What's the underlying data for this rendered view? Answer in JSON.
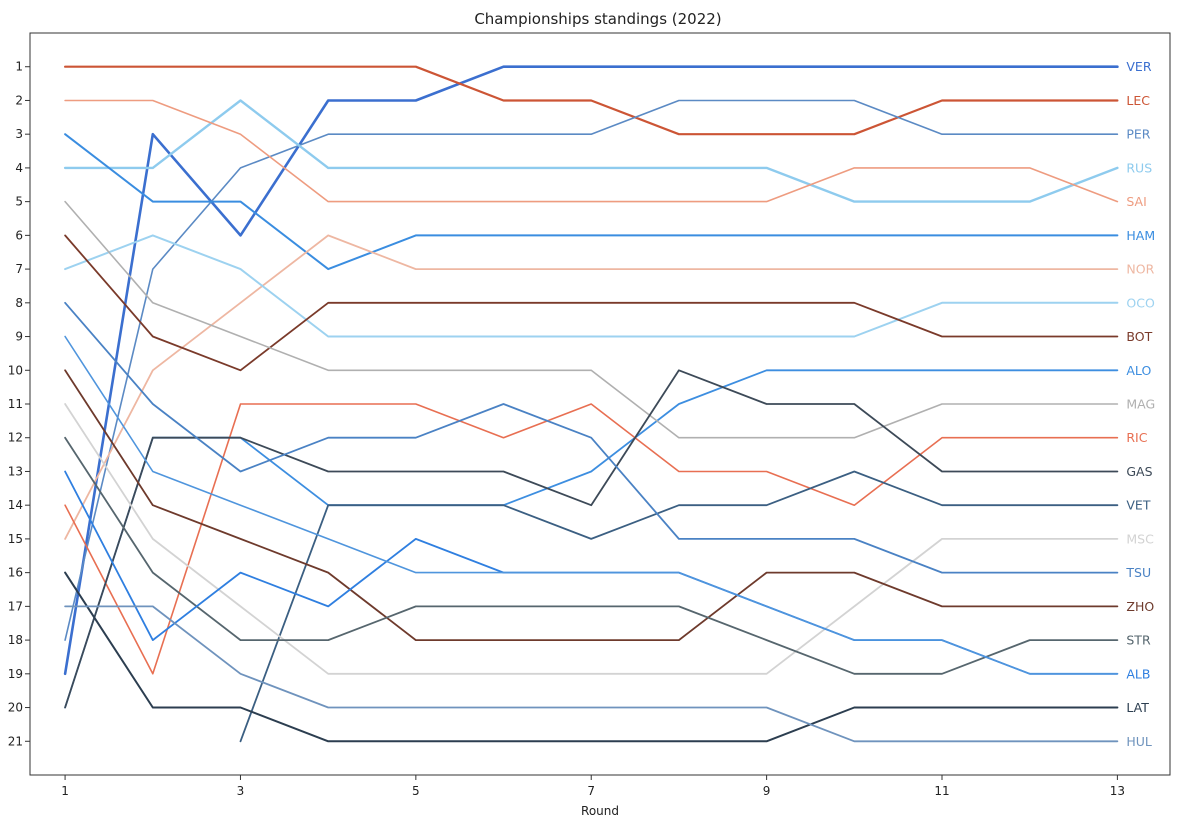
{
  "chart_data": {
    "type": "line",
    "title": "Championships standings (2022)",
    "xlabel": "Round",
    "ylabel": "",
    "x": [
      1,
      2,
      3,
      4,
      5,
      6,
      7,
      8,
      9,
      10,
      11,
      12,
      13
    ],
    "xticks": [
      1,
      3,
      5,
      7,
      9,
      11,
      13
    ],
    "yticks": [
      1,
      2,
      3,
      4,
      5,
      6,
      7,
      8,
      9,
      10,
      11,
      12,
      13,
      14,
      15,
      16,
      17,
      18,
      19,
      20,
      21
    ],
    "xlim": [
      0.6,
      13.6
    ],
    "ylim": [
      22.0,
      0.0
    ],
    "y_inverted": true,
    "grid": false,
    "legend": "labels at line ends (right)",
    "series": [
      {
        "name": "VER",
        "color": "#3b6fcf",
        "width": 2.6,
        "values": [
          19,
          3,
          6,
          2,
          2,
          1,
          1,
          1,
          1,
          1,
          1,
          1,
          1
        ]
      },
      {
        "name": "LEC",
        "color": "#cc5535",
        "width": 2.2,
        "values": [
          1,
          1,
          1,
          1,
          1,
          2,
          2,
          3,
          3,
          3,
          2,
          2,
          2
        ]
      },
      {
        "name": "PER",
        "color": "#5b8ac4",
        "width": 1.6,
        "values": [
          18,
          7,
          4,
          3,
          3,
          3,
          3,
          2,
          2,
          2,
          3,
          3,
          3
        ]
      },
      {
        "name": "RUS",
        "color": "#8ecbee",
        "width": 2.4,
        "values": [
          4,
          4,
          2,
          4,
          4,
          4,
          4,
          4,
          4,
          5,
          5,
          5,
          4
        ]
      },
      {
        "name": "SAI",
        "color": "#ee9c80",
        "width": 1.6,
        "values": [
          2,
          2,
          3,
          5,
          5,
          5,
          5,
          5,
          5,
          4,
          4,
          4,
          5
        ]
      },
      {
        "name": "HAM",
        "color": "#3a8de0",
        "width": 2.0,
        "values": [
          3,
          5,
          5,
          7,
          6,
          6,
          6,
          6,
          6,
          6,
          6,
          6,
          6
        ]
      },
      {
        "name": "NOR",
        "color": "#eeb7a2",
        "width": 1.8,
        "values": [
          15,
          10,
          8,
          6,
          7,
          7,
          7,
          7,
          7,
          7,
          7,
          7,
          7
        ]
      },
      {
        "name": "OCO",
        "color": "#9dd2f0",
        "width": 2.0,
        "values": [
          7,
          6,
          7,
          9,
          9,
          9,
          9,
          9,
          9,
          9,
          8,
          8,
          8
        ]
      },
      {
        "name": "BOT",
        "color": "#7a3a2a",
        "width": 1.8,
        "values": [
          6,
          9,
          10,
          8,
          8,
          8,
          8,
          8,
          8,
          8,
          9,
          9,
          9
        ]
      },
      {
        "name": "ALO",
        "color": "#3d8ee0",
        "width": 1.8,
        "values": [
          20,
          12,
          12,
          14,
          14,
          14,
          13,
          11,
          10,
          10,
          10,
          10,
          10
        ]
      },
      {
        "name": "MAG",
        "color": "#b0b0b0",
        "width": 1.6,
        "values": [
          5,
          8,
          9,
          10,
          10,
          10,
          10,
          12,
          12,
          12,
          11,
          11,
          11
        ]
      },
      {
        "name": "RIC",
        "color": "#e86f52",
        "width": 1.6,
        "values": [
          14,
          19,
          11,
          11,
          11,
          12,
          11,
          13,
          13,
          14,
          12,
          12,
          12
        ]
      },
      {
        "name": "GAS",
        "color": "#3d4a58",
        "width": 1.8,
        "values": [
          20,
          12,
          12,
          13,
          13,
          13,
          14,
          10,
          11,
          11,
          13,
          13,
          13
        ]
      },
      {
        "name": "VET",
        "color": "#3b5f82",
        "width": 1.8,
        "values": [
          null,
          null,
          21,
          14,
          14,
          14,
          15,
          14,
          14,
          13,
          14,
          14,
          14
        ]
      },
      {
        "name": "MSC",
        "color": "#d3d3d3",
        "width": 1.8,
        "values": [
          11,
          15,
          17,
          19,
          19,
          19,
          19,
          19,
          19,
          17,
          15,
          15,
          15
        ]
      },
      {
        "name": "TSU",
        "color": "#4a82c4",
        "width": 1.8,
        "values": [
          8,
          11,
          13,
          12,
          12,
          11,
          12,
          15,
          15,
          15,
          16,
          16,
          16
        ]
      },
      {
        "name": "ZHO",
        "color": "#6e3a2c",
        "width": 1.8,
        "values": [
          10,
          14,
          15,
          16,
          18,
          18,
          18,
          18,
          16,
          16,
          17,
          17,
          17
        ]
      },
      {
        "name": "STR",
        "color": "#56666e",
        "width": 1.8,
        "values": [
          12,
          16,
          18,
          18,
          17,
          17,
          17,
          17,
          18,
          19,
          19,
          18,
          18
        ]
      },
      {
        "name": "ALB",
        "color": "#2f7fe0",
        "width": 1.8,
        "values": [
          13,
          18,
          16,
          17,
          15,
          16,
          16,
          16,
          17,
          18,
          18,
          19,
          19
        ]
      },
      {
        "name": "LAT",
        "color": "#2c3e50",
        "width": 2.0,
        "values": [
          16,
          20,
          20,
          21,
          21,
          21,
          21,
          21,
          21,
          20,
          20,
          20,
          20
        ]
      },
      {
        "name": "HUL",
        "color": "#6f93bd",
        "width": 1.8,
        "values": [
          17,
          17,
          19,
          20,
          20,
          20,
          20,
          20,
          20,
          21,
          21,
          21,
          21
        ]
      },
      {
        "name": "",
        "color": "#4f95dd",
        "width": 1.6,
        "values": [
          9,
          13,
          14,
          15,
          16,
          16,
          16,
          16,
          17,
          18,
          18,
          19,
          19
        ]
      }
    ]
  }
}
